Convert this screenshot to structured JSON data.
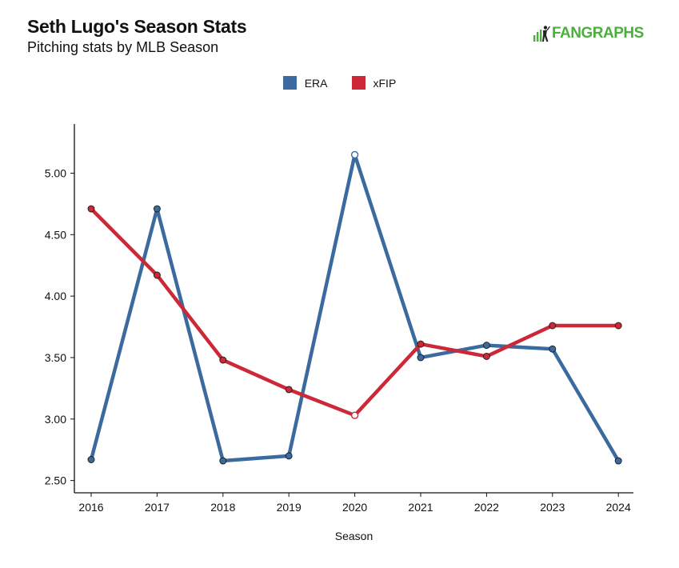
{
  "header": {
    "title": "Seth Lugo's Season Stats",
    "subtitle": "Pitching stats by MLB Season"
  },
  "brand": {
    "logo_text": "FANGRAPHS",
    "logo_icon": "fangraphs-bars-batter-icon",
    "color": "#4caf3d"
  },
  "chart_data": {
    "type": "line",
    "title": "Seth Lugo's Season Stats",
    "subtitle": "Pitching stats by MLB Season",
    "xlabel": "Season",
    "ylabel": "",
    "x": [
      2016,
      2017,
      2018,
      2019,
      2020,
      2021,
      2022,
      2023,
      2024
    ],
    "x_tick_labels": [
      "2016",
      "2017",
      "2018",
      "2019",
      "2020",
      "2021",
      "2022",
      "2023",
      "2024"
    ],
    "ylim": [
      2.4,
      5.4
    ],
    "y_ticks": [
      2.5,
      3.0,
      3.5,
      4.0,
      4.5,
      5.0
    ],
    "y_tick_labels": [
      "2.50",
      "3.00",
      "3.50",
      "4.00",
      "4.50",
      "5.00"
    ],
    "grid": false,
    "legend_position": "top-center",
    "series": [
      {
        "name": "ERA",
        "color": "#3a6a9e",
        "values": [
          2.67,
          4.71,
          2.66,
          2.7,
          5.15,
          3.5,
          3.6,
          3.57,
          2.66
        ],
        "hollow_points": [
          2020
        ]
      },
      {
        "name": "xFIP",
        "color": "#cc2837",
        "values": [
          4.71,
          4.17,
          3.48,
          3.24,
          3.03,
          3.61,
          3.51,
          3.76,
          3.76
        ],
        "hollow_points": [
          2020
        ]
      }
    ]
  }
}
